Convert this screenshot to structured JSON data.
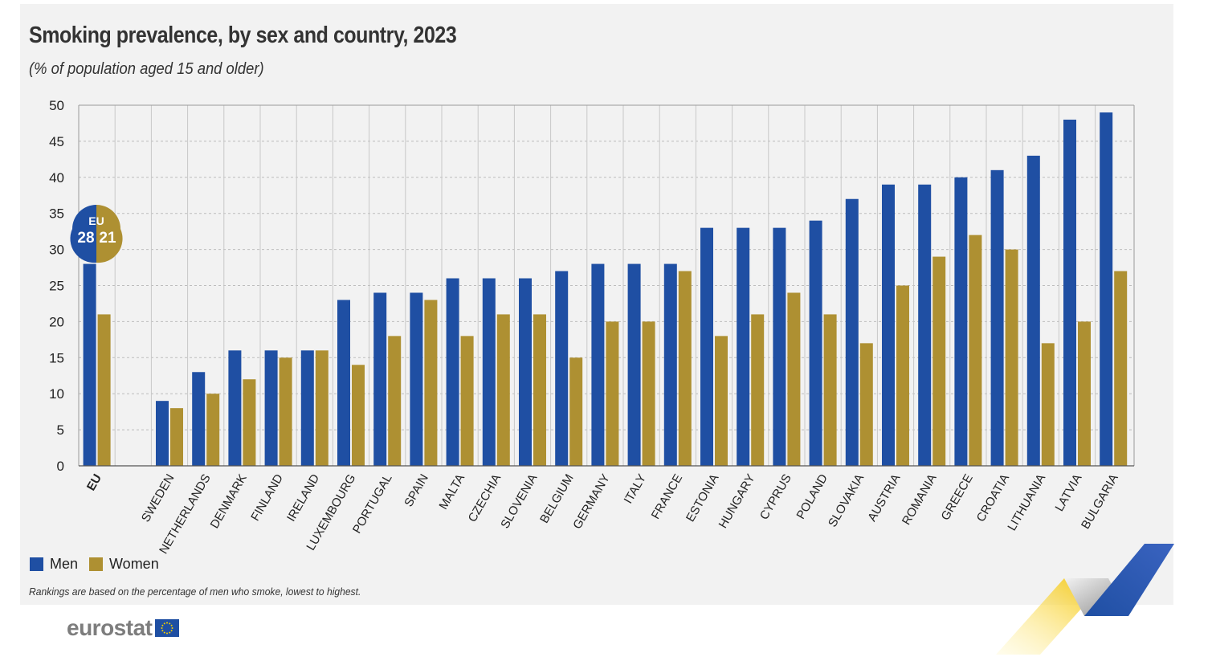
{
  "title": "Smoking prevalence, by sex and country, 2023",
  "subtitle": "(% of population aged 15 and older)",
  "note": "Rankings are based on the percentage of men who smoke, lowest to highest.",
  "logo": "eurostat",
  "eu_callout": {
    "label": "EU",
    "men": "28",
    "women": "21"
  },
  "colors": {
    "men": "#1f4fa3",
    "women": "#ae9032",
    "background": "#f2f2f2",
    "grid": "#bdbdbd"
  },
  "chart_data": {
    "type": "bar",
    "categories": [
      "EU",
      "SWEDEN",
      "NETHERLANDS",
      "DENMARK",
      "FINLAND",
      "IRELAND",
      "LUXEMBOURG",
      "PORTUGAL",
      "SPAIN",
      "MALTA",
      "CZECHIA",
      "SLOVENIA",
      "BELGIUM",
      "GERMANY",
      "ITALY",
      "FRANCE",
      "ESTONIA",
      "HUNGARY",
      "CYPRUS",
      "POLAND",
      "SLOVAKIA",
      "AUSTRIA",
      "ROMANIA",
      "GREECE",
      "CROATIA",
      "LITHUANIA",
      "LATVIA",
      "BULGARIA"
    ],
    "series": [
      {
        "name": "Men",
        "values": [
          28,
          9,
          13,
          16,
          16,
          16,
          23,
          24,
          24,
          26,
          26,
          26,
          27,
          28,
          28,
          28,
          33,
          33,
          33,
          34,
          37,
          39,
          39,
          40,
          41,
          43,
          48,
          49
        ]
      },
      {
        "name": "Women",
        "values": [
          21,
          8,
          10,
          12,
          15,
          16,
          14,
          18,
          23,
          18,
          21,
          21,
          15,
          20,
          20,
          27,
          18,
          21,
          24,
          21,
          17,
          25,
          29,
          32,
          30,
          17,
          20,
          27
        ]
      }
    ],
    "title": "Smoking prevalence, by sex and country, 2023",
    "subtitle": "(% of population aged 15 and older)",
    "ylim": [
      0,
      50
    ],
    "yticks": [
      0,
      5,
      10,
      15,
      20,
      25,
      30,
      35,
      40,
      45,
      50
    ],
    "grid": true,
    "legend_position": "bottom-left"
  }
}
